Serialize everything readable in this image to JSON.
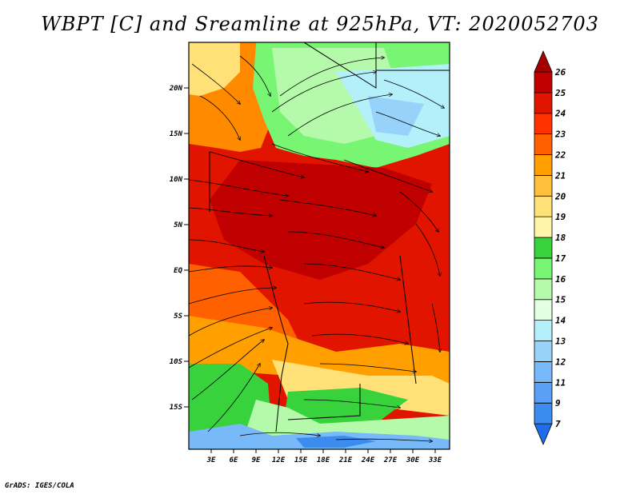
{
  "title": "WBPT [C] and Sreamline at 925hPa, VT: 2020052703",
  "credit": "GrADS: IGES/COLA",
  "map": {
    "lat_labels": [
      "20N",
      "15N",
      "10N",
      "5N",
      "EQ",
      "5S",
      "10S",
      "15S"
    ],
    "lon_labels": [
      "3E",
      "6E",
      "9E",
      "12E",
      "15E",
      "18E",
      "21E",
      "24E",
      "27E",
      "30E",
      "33E"
    ]
  },
  "colorbar": {
    "labels": [
      "7",
      "9",
      "11",
      "12",
      "13",
      "14",
      "15",
      "16",
      "17",
      "18",
      "19",
      "20",
      "21",
      "22",
      "23",
      "24",
      "25",
      "26"
    ],
    "colors": [
      "#1e6eeb",
      "#3c8cf0",
      "#5aa0f5",
      "#78b9fa",
      "#96d2fa",
      "#b4f0fa",
      "#e1ffe1",
      "#b4faaa",
      "#78f573",
      "#37d23c",
      "#fff5aa",
      "#ffe178",
      "#ffc03c",
      "#ffa000",
      "#ff6000",
      "#ff3200",
      "#e11400",
      "#c00000",
      "#a50000"
    ]
  },
  "chart_data": {
    "type": "heatmap",
    "title": "WBPT [C] and Sreamline at 925hPa, VT: 2020052703",
    "variable": "Wet-bulb potential temperature (C) with streamlines",
    "level": "925hPa",
    "valid_time": "2020052703",
    "lon_ticks": [
      "3E",
      "6E",
      "9E",
      "12E",
      "15E",
      "18E",
      "21E",
      "24E",
      "27E",
      "30E",
      "33E"
    ],
    "lat_ticks": [
      "20N",
      "15N",
      "10N",
      "5N",
      "EQ",
      "5S",
      "10S",
      "15S"
    ],
    "colorbar_levels": [
      7,
      9,
      11,
      12,
      13,
      14,
      15,
      16,
      17,
      18,
      19,
      20,
      21,
      22,
      23,
      24,
      25,
      26
    ]
  }
}
